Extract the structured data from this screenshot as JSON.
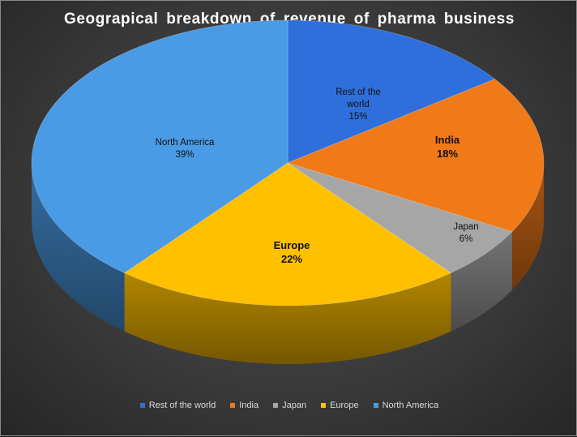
{
  "chart_data": {
    "type": "pie",
    "title": "Geograpical  breakdown  of revenue  of pharma  business",
    "categories": [
      "Rest of the world",
      "India",
      "Japan",
      "Europe",
      "North America"
    ],
    "values": [
      15,
      18,
      6,
      22,
      39
    ],
    "labels": [
      "15%",
      "18%",
      "6%",
      "22%",
      "39%"
    ],
    "data_label_names": [
      "Rest of the\nworld",
      "India",
      "Japan",
      "Europe",
      "North America"
    ],
    "colors": [
      "#2F6FDB",
      "#F07A18",
      "#A6A6A6",
      "#FFC000",
      "#4A9BE6"
    ],
    "legend_position": "bottom",
    "style": "3d-pie"
  }
}
